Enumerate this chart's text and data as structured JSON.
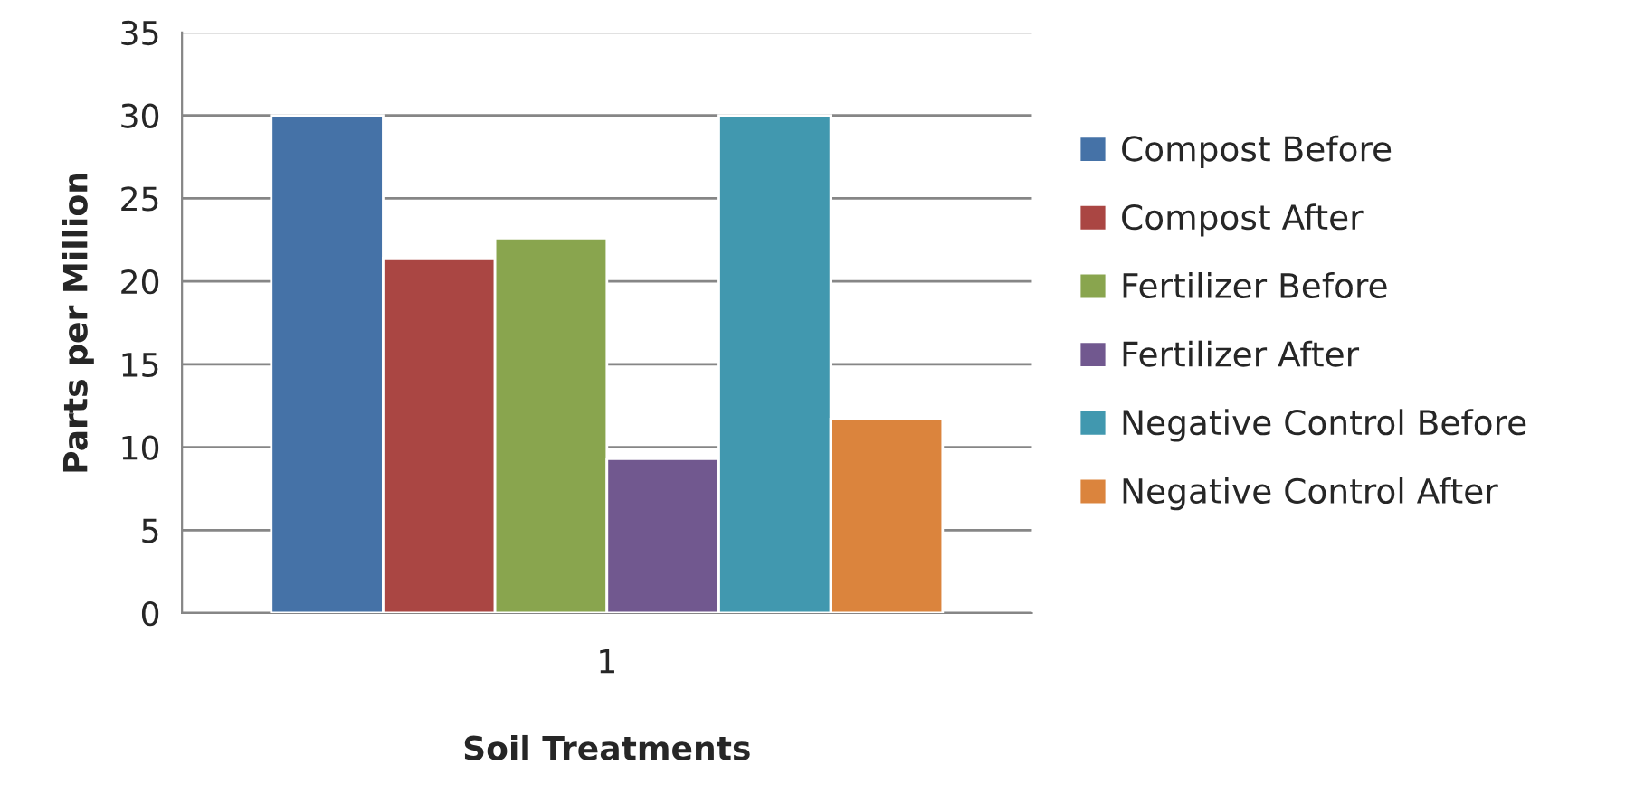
{
  "chart_data": {
    "type": "bar",
    "xlabel": "Soil Treatments",
    "ylabel": "Parts per Million",
    "categories": [
      "1"
    ],
    "series": [
      {
        "name": "Compost Before",
        "color": "#4572a7",
        "values": [
          30
        ]
      },
      {
        "name": "Compost After",
        "color": "#aa4643",
        "values": [
          21.4
        ]
      },
      {
        "name": "Fertilizer Before",
        "color": "#89a54e",
        "values": [
          22.6
        ]
      },
      {
        "name": "Fertilizer After",
        "color": "#71588f",
        "values": [
          9.3
        ]
      },
      {
        "name": "Negative Control Before",
        "color": "#4198af",
        "values": [
          30
        ]
      },
      {
        "name": "Negative Control After",
        "color": "#db843d",
        "values": [
          11.7
        ]
      }
    ],
    "ylim": [
      0,
      35
    ],
    "yticks": [
      0,
      5,
      10,
      15,
      20,
      25,
      30,
      35
    ],
    "grid": "y",
    "legend": "right"
  }
}
